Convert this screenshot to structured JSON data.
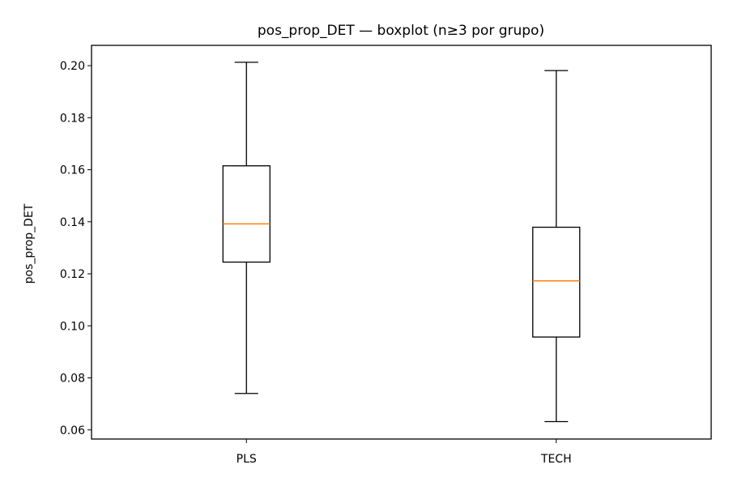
{
  "chart_data": {
    "type": "boxplot",
    "title": "pos_prop_DET — boxplot (n≥3 por grupo)",
    "xlabel": "",
    "ylabel": "pos_prop_DET",
    "categories": [
      "PLS",
      "TECH"
    ],
    "boxes": [
      {
        "category": "PLS",
        "whisker_low": 0.074,
        "q1": 0.1245,
        "median": 0.1392,
        "q3": 0.1615,
        "whisker_high": 0.2013
      },
      {
        "category": "TECH",
        "whisker_low": 0.0632,
        "q1": 0.0957,
        "median": 0.1173,
        "q3": 0.1379,
        "whisker_high": 0.1981
      }
    ],
    "ylim": [
      0.0565,
      0.2078
    ],
    "yticks": [
      0.06,
      0.08,
      0.1,
      0.12,
      0.14,
      0.16,
      0.18,
      0.2
    ],
    "ytick_labels": [
      "0.06",
      "0.08",
      "0.10",
      "0.12",
      "0.14",
      "0.16",
      "0.18",
      "0.20"
    ],
    "grid": false,
    "colors": {
      "box": "#000000",
      "median": "#ff7f0e",
      "whisker": "#000000"
    }
  }
}
